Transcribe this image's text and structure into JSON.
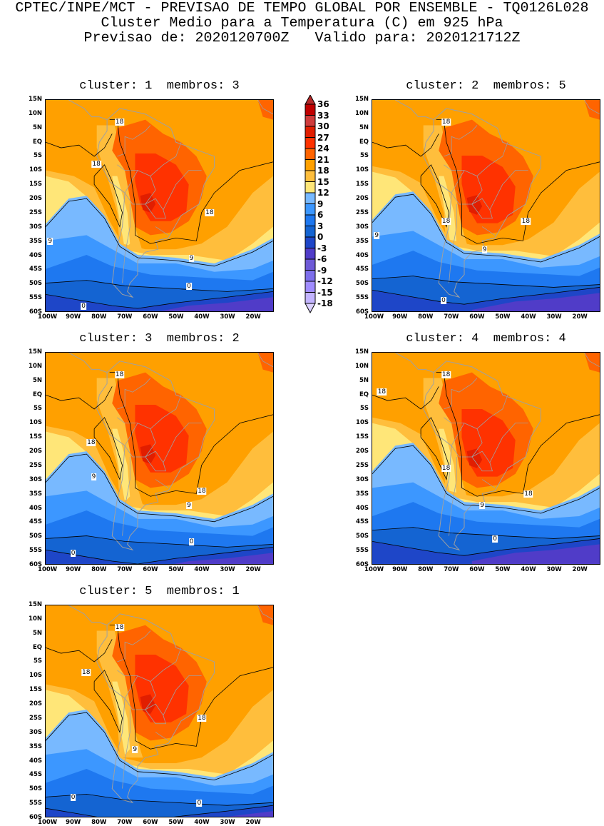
{
  "header": {
    "line1": "CPTEC/INPE/MCT - PREVISAO DE TEMPO GLOBAL POR ENSEMBLE - TQ0126L028",
    "line2": "Cluster Medio para a Temperatura (C) em 925 hPa",
    "line3": "Previsao de: 2020120700Z   Valido para: 2020121712Z"
  },
  "axes": {
    "lat_labels": [
      "15N",
      "10N",
      "5N",
      "EQ",
      "5S",
      "10S",
      "15S",
      "20S",
      "25S",
      "30S",
      "35S",
      "40S",
      "45S",
      "50S",
      "55S",
      "60S"
    ],
    "lat_values": [
      15,
      10,
      5,
      0,
      -5,
      -10,
      -15,
      -20,
      -25,
      -30,
      -35,
      -40,
      -45,
      -50,
      -55,
      -60
    ],
    "lon_labels": [
      "100W",
      "90W",
      "80W",
      "70W",
      "60W",
      "50W",
      "40W",
      "30W",
      "20W"
    ],
    "lon_values": [
      -100,
      -90,
      -80,
      -70,
      -60,
      -50,
      -40,
      -30,
      -20
    ]
  },
  "panels": [
    {
      "title": "cluster: 1  membros: 3",
      "contour_labels": [
        "18",
        "18",
        "18",
        "9",
        "9",
        "0",
        "0"
      ]
    },
    {
      "title": "cluster: 2  membros: 5",
      "contour_labels": [
        "18",
        "18",
        "18",
        "9",
        "9",
        "0"
      ]
    },
    {
      "title": "cluster: 3  membros: 2",
      "contour_labels": [
        "18",
        "18",
        "18",
        "9",
        "9",
        "0",
        "0"
      ]
    },
    {
      "title": "cluster: 4  membros: 4",
      "contour_labels": [
        "18",
        "18",
        "18",
        "18",
        "9",
        "0"
      ]
    },
    {
      "title": "cluster: 5  membros: 1",
      "contour_labels": [
        "18",
        "18",
        "18",
        "9",
        "0",
        "0"
      ]
    }
  ],
  "colorbar": {
    "labels": [
      "36",
      "33",
      "30",
      "27",
      "24",
      "21",
      "18",
      "15",
      "12",
      "9",
      "6",
      "3",
      "0",
      "-3",
      "-6",
      "-9",
      "-12",
      "-15",
      "-18"
    ],
    "colors": [
      "#c00000",
      "#d03c3c",
      "#e11e00",
      "#ff3200",
      "#ff6400",
      "#ffa000",
      "#ffbe3c",
      "#ffe678",
      "#78b9ff",
      "#3c97ff",
      "#1e78f0",
      "#1464d2",
      "#1e46c8",
      "#503cc8",
      "#6e5ad7",
      "#7d6eeb",
      "#a08cff",
      "#c3b4ff"
    ],
    "over_color": "#b42828",
    "under_color": "#dcd2ff"
  }
}
